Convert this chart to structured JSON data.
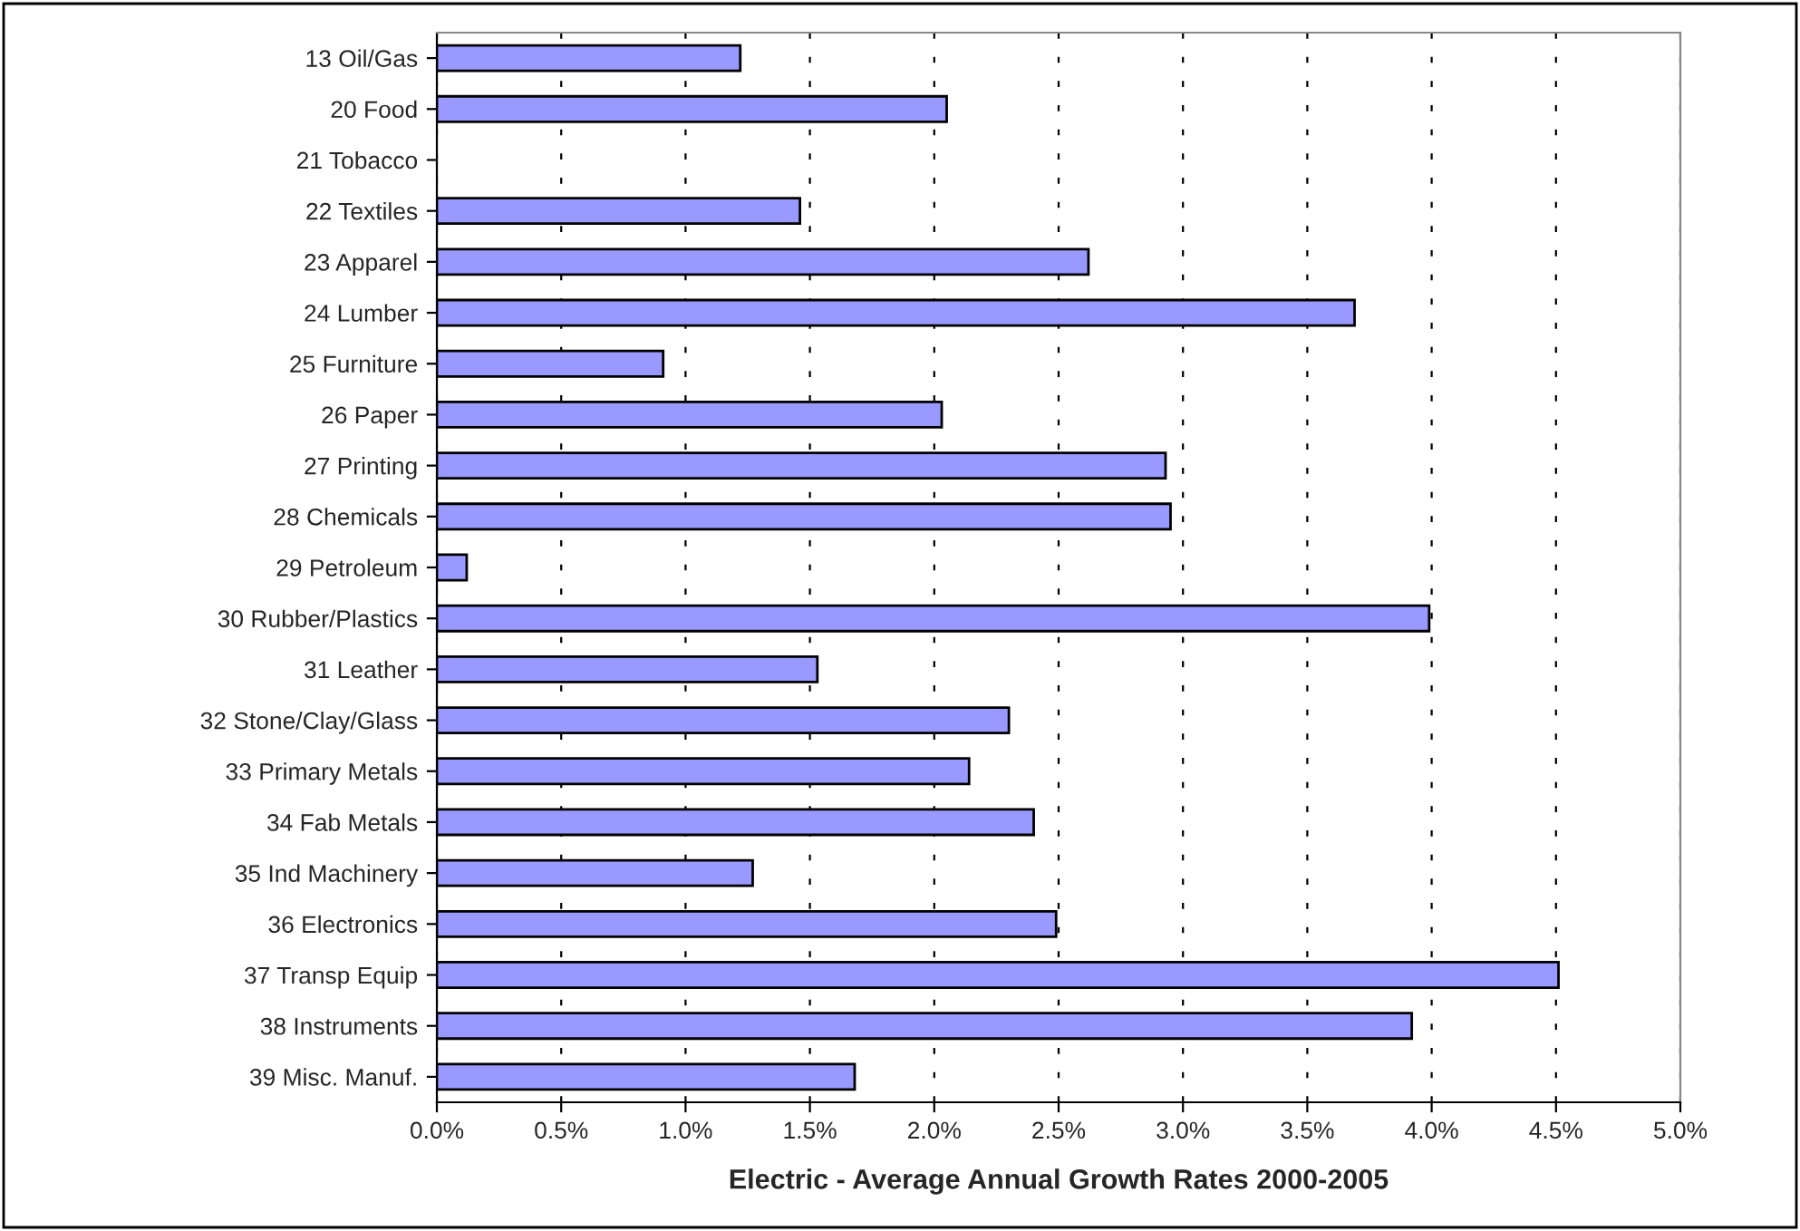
{
  "chart_data": {
    "type": "bar",
    "orientation": "horizontal",
    "xlabel": "Electric - Average Annual Growth Rates 2000-2005",
    "categories": [
      "13 Oil/Gas",
      "20 Food",
      "21 Tobacco",
      "22 Textiles",
      "23 Apparel",
      "24 Lumber",
      "25 Furniture",
      "26 Paper",
      "27 Printing",
      "28 Chemicals",
      "29 Petroleum",
      "30 Rubber/Plastics",
      "31 Leather",
      "32 Stone/Clay/Glass",
      "33 Primary Metals",
      "34 Fab Metals",
      "35 Ind Machinery",
      "36 Electronics",
      "37 Transp Equip",
      "38 Instruments",
      "39 Misc. Manuf."
    ],
    "values": [
      1.22,
      2.05,
      null,
      1.46,
      2.62,
      3.69,
      0.91,
      2.03,
      2.93,
      2.95,
      0.12,
      3.99,
      1.53,
      2.3,
      2.14,
      2.4,
      1.27,
      2.49,
      4.51,
      3.92,
      1.68
    ],
    "color": "#9999ff",
    "xlim": [
      0,
      5
    ],
    "xticks": [
      {
        "value": 0,
        "label": "0.0%"
      },
      {
        "value": 0.5,
        "label": "0.5%"
      },
      {
        "value": 1,
        "label": "1.0%"
      },
      {
        "value": 1.5,
        "label": "1.5%"
      },
      {
        "value": 2,
        "label": "2.0%"
      },
      {
        "value": 2.5,
        "label": "2.5%"
      },
      {
        "value": 3,
        "label": "3.0%"
      },
      {
        "value": 3.5,
        "label": "3.5%"
      },
      {
        "value": 4,
        "label": "4.0%"
      },
      {
        "value": 4.5,
        "label": "4.5%"
      },
      {
        "value": 5,
        "label": "5.0%"
      }
    ],
    "grid": "x"
  }
}
